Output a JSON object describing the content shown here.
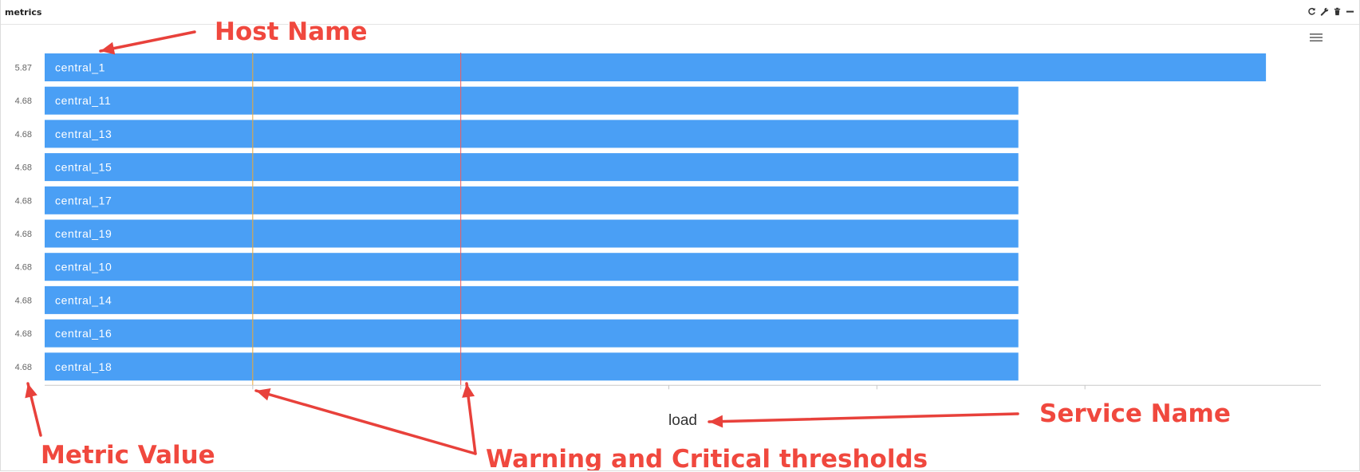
{
  "widget": {
    "title": "metrics",
    "tools": [
      "refresh-icon",
      "wrench-icon",
      "trash-icon",
      "minimize-icon"
    ],
    "menu_icon": "hamburger-menu-icon"
  },
  "chart_data": {
    "type": "bar",
    "orientation": "horizontal",
    "categories": [
      "central_1",
      "central_11",
      "central_13",
      "central_15",
      "central_17",
      "central_19",
      "central_10",
      "central_14",
      "central_16",
      "central_18"
    ],
    "values": [
      5.87,
      4.68,
      4.68,
      4.68,
      4.68,
      4.68,
      4.68,
      4.68,
      4.68,
      4.68
    ],
    "value_labels": [
      "5.87",
      "4.68",
      "4.68",
      "4.68",
      "4.68",
      "4.68",
      "4.68",
      "4.68",
      "4.68",
      "4.68"
    ],
    "xlabel": "load",
    "xlim": [
      0,
      6
    ],
    "thresholds": {
      "warning": 1,
      "critical": 2
    },
    "colors": {
      "bar": "#4a9ff5",
      "warning": "#f0a830",
      "critical": "#f25a5a",
      "axis": "#c8c8c8"
    }
  },
  "annotations": {
    "host_name": "Host Name",
    "service_name": "Service Name",
    "metric_value": "Metric Value",
    "thresholds": "Warning and Critical thresholds"
  }
}
